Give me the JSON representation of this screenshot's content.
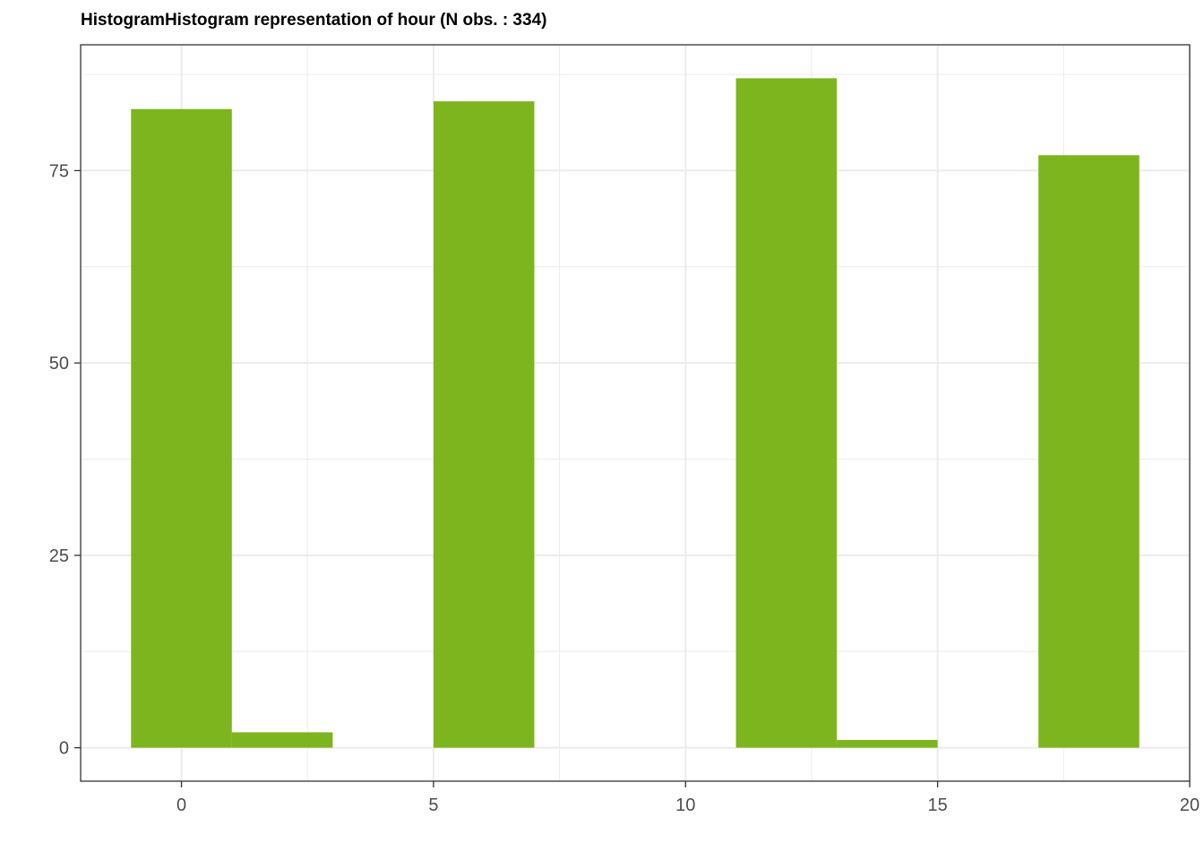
{
  "chart_data": {
    "type": "bar",
    "title": "HistogramHistogram representation of hour (N obs. : 334)",
    "xlabel": "",
    "ylabel": "",
    "bin_width": 2,
    "bins": [
      {
        "x_start": -1,
        "x_end": 1,
        "count": 83
      },
      {
        "x_start": 1,
        "x_end": 3,
        "count": 2
      },
      {
        "x_start": 3,
        "x_end": 5,
        "count": 0
      },
      {
        "x_start": 5,
        "x_end": 7,
        "count": 84
      },
      {
        "x_start": 7,
        "x_end": 9,
        "count": 0
      },
      {
        "x_start": 9,
        "x_end": 11,
        "count": 0
      },
      {
        "x_start": 11,
        "x_end": 13,
        "count": 87
      },
      {
        "x_start": 13,
        "x_end": 15,
        "count": 1
      },
      {
        "x_start": 15,
        "x_end": 17,
        "count": 0
      },
      {
        "x_start": 17,
        "x_end": 19,
        "count": 77
      }
    ],
    "xlim": [
      -2,
      20
    ],
    "ylim": [
      -4.35,
      91.35
    ],
    "x_ticks": [
      0,
      5,
      10,
      15,
      20
    ],
    "y_ticks": [
      0,
      25,
      50,
      75
    ],
    "x_minor_ticks": [
      2.5,
      7.5,
      12.5,
      17.5
    ],
    "y_minor_ticks": [
      12.5,
      37.5,
      62.5,
      87.5
    ],
    "grid": true,
    "bar_color": "#7CB51E",
    "grid_color": "#EBEBEB",
    "axis_color": "#333333"
  }
}
